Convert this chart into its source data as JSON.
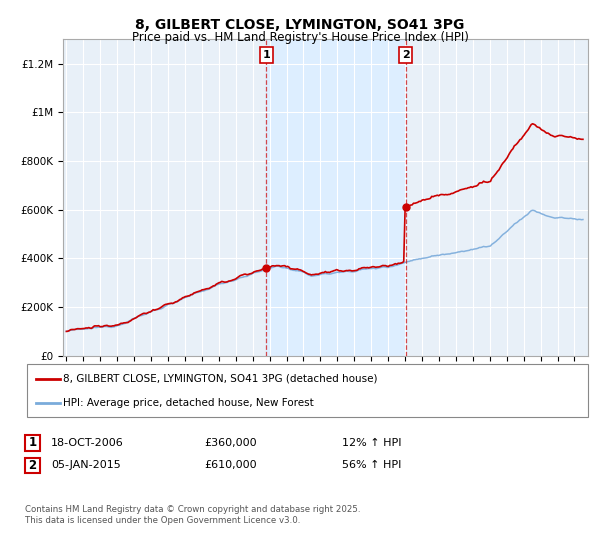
{
  "title": "8, GILBERT CLOSE, LYMINGTON, SO41 3PG",
  "subtitle": "Price paid vs. HM Land Registry's House Price Index (HPI)",
  "legend_line1": "8, GILBERT CLOSE, LYMINGTON, SO41 3PG (detached house)",
  "legend_line2": "HPI: Average price, detached house, New Forest",
  "sale1_date": "18-OCT-2006",
  "sale1_price": "£360,000",
  "sale1_hpi": "12% ↑ HPI",
  "sale1_year": 2006.8,
  "sale1_value": 360000,
  "sale2_date": "05-JAN-2015",
  "sale2_price": "£610,000",
  "sale2_hpi": "56% ↑ HPI",
  "sale2_year": 2015.04,
  "sale2_value": 610000,
  "red_color": "#cc0000",
  "blue_color": "#7aabdb",
  "shading_color": "#ddeeff",
  "plot_bg_color": "#e8f0f8",
  "grid_color": "#ffffff",
  "footnote": "Contains HM Land Registry data © Crown copyright and database right 2025.\nThis data is licensed under the Open Government Licence v3.0.",
  "ylim": [
    0,
    1300000
  ],
  "xlim_start": 1994.8,
  "xlim_end": 2025.8,
  "yticks": [
    0,
    200000,
    400000,
    600000,
    800000,
    1000000,
    1200000
  ],
  "ytick_labels": [
    "£0",
    "£200K",
    "£400K",
    "£600K",
    "£800K",
    "£1M",
    "£1.2M"
  ]
}
